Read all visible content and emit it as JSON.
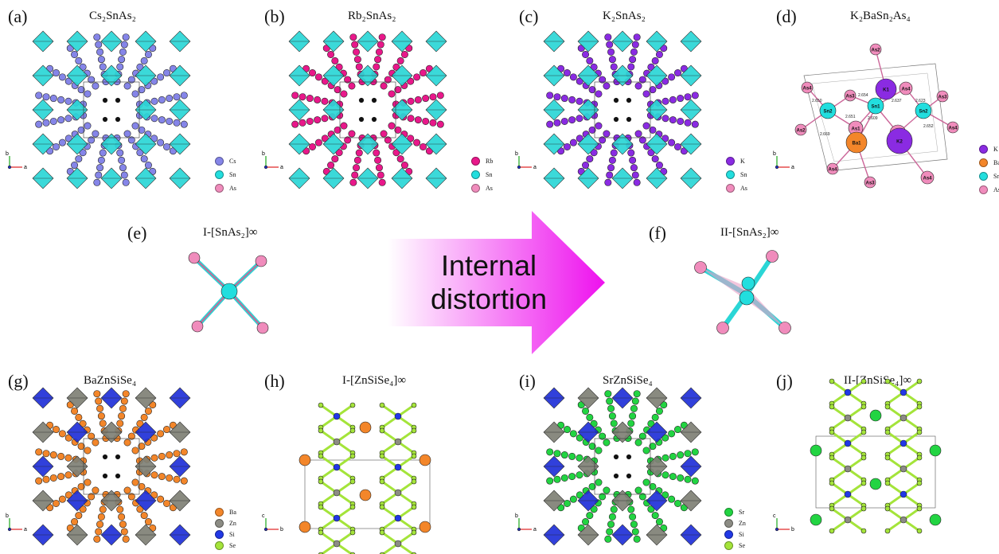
{
  "colors": {
    "Cs": "#8585e8",
    "Rb": "#e8188a",
    "K": "#8a2be2",
    "Sn": "#22dede",
    "As": "#f08cbc",
    "Ba": "#f3862a",
    "Zn": "#8c8c84",
    "Si": "#2138e6",
    "Se": "#a4e43a",
    "Sr": "#22d442",
    "tetra_Sn": "#2ad6d6",
    "tetra_Si": "#1f30d8",
    "tetra_Zn": "#7f8075",
    "arrow_start": "#ffffff",
    "arrow_end": "#ee11ee"
  },
  "panels": {
    "a": {
      "label": "(a)",
      "title": "Cs₂SnAs₂",
      "legend": [
        "Cs",
        "Sn",
        "As"
      ]
    },
    "b": {
      "label": "(b)",
      "title": "Rb₂SnAs₂",
      "legend": [
        "Rb",
        "Sn",
        "As"
      ]
    },
    "c": {
      "label": "(c)",
      "title": "K₂SnAs₂",
      "legend": [
        "K",
        "Sn",
        "As"
      ]
    },
    "d": {
      "label": "(d)",
      "title": "K₂BaSn₂As₄",
      "legend": [
        "K",
        "Ba",
        "Sn",
        "As"
      ],
      "atoms": [
        "As2",
        "As4",
        "As3",
        "K1",
        "As4",
        "As3",
        "Sn2",
        "Sn1",
        "Sn2",
        "As1",
        "As2",
        "As4",
        "As2",
        "Ba1",
        "K2",
        "As4",
        "As3",
        "As4"
      ],
      "distances": [
        "2.650",
        "2.654",
        "2.651",
        "2.609",
        "2.669",
        "2.637",
        "2.623",
        "2.652"
      ]
    },
    "e": {
      "label": "(e)",
      "title": "I-[SnAs₂]∞"
    },
    "f": {
      "label": "(f)",
      "title": "II-[SnAs₂]∞"
    },
    "g": {
      "label": "(g)",
      "title": "BaZnSiSe₄",
      "legend": [
        "Ba",
        "Zn",
        "Si",
        "Se"
      ]
    },
    "h": {
      "label": "(h)",
      "title": "I-[ZnSiSe₄]∞"
    },
    "i": {
      "label": "(i)",
      "title": "SrZnSiSe₄",
      "legend": [
        "Sr",
        "Zn",
        "Si",
        "Se"
      ]
    },
    "j": {
      "label": "(j)",
      "title": "II-[ZnSiSe₄]∞"
    }
  },
  "arrow": {
    "line1": "Internal",
    "line2": "distortion"
  },
  "axes": {
    "ab": {
      "v": "b",
      "h": "a"
    },
    "cb": {
      "v": "c",
      "h": "b"
    }
  }
}
